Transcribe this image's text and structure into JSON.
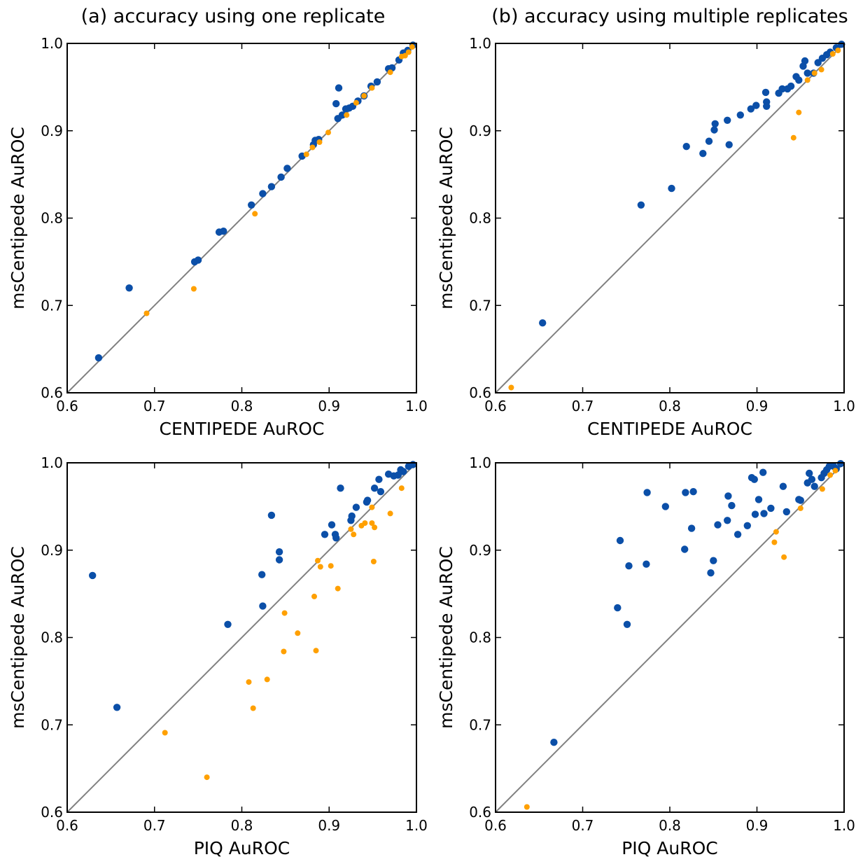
{
  "column_titles": [
    "(a) accuracy using one replicate",
    "(b) accuracy using multiple replicates"
  ],
  "colors": {
    "blue": "#0b4fa8",
    "orange": "#ffa000",
    "diagonal": "#808080"
  },
  "chart_data": [
    {
      "type": "scatter",
      "xlabel": "CENTIPEDE AuROC",
      "ylabel": "msCentipede AuROC",
      "xlim": [
        0.6,
        1.0
      ],
      "ylim": [
        0.6,
        1.0
      ],
      "xticks": [
        "0.6",
        "0.7",
        "0.8",
        "0.9",
        "1.0"
      ],
      "yticks": [
        "0.6",
        "0.7",
        "0.8",
        "0.9",
        "1.0"
      ],
      "diagonal": true,
      "series": [
        {
          "color": "blue",
          "points": [
            [
              0.636,
              0.64
            ],
            [
              0.671,
              0.72
            ],
            [
              0.746,
              0.75
            ],
            [
              0.75,
              0.752
            ],
            [
              0.774,
              0.784
            ],
            [
              0.779,
              0.785
            ],
            [
              0.811,
              0.815
            ],
            [
              0.824,
              0.828
            ],
            [
              0.834,
              0.836
            ],
            [
              0.845,
              0.847
            ],
            [
              0.852,
              0.857
            ],
            [
              0.869,
              0.871
            ],
            [
              0.882,
              0.884
            ],
            [
              0.884,
              0.889
            ],
            [
              0.888,
              0.89
            ],
            [
              0.908,
              0.931
            ],
            [
              0.911,
              0.949
            ],
            [
              0.91,
              0.914
            ],
            [
              0.915,
              0.918
            ],
            [
              0.919,
              0.925
            ],
            [
              0.923,
              0.926
            ],
            [
              0.927,
              0.928
            ],
            [
              0.933,
              0.934
            ],
            [
              0.94,
              0.94
            ],
            [
              0.948,
              0.951
            ],
            [
              0.955,
              0.956
            ],
            [
              0.968,
              0.971
            ],
            [
              0.972,
              0.972
            ],
            [
              0.98,
              0.981
            ],
            [
              0.985,
              0.989
            ],
            [
              0.99,
              0.992
            ],
            [
              0.996,
              0.998
            ]
          ]
        },
        {
          "color": "orange",
          "points": [
            [
              0.691,
              0.691
            ],
            [
              0.745,
              0.719
            ],
            [
              0.815,
              0.805
            ],
            [
              0.874,
              0.873
            ],
            [
              0.881,
              0.881
            ],
            [
              0.889,
              0.887
            ],
            [
              0.899,
              0.898
            ],
            [
              0.92,
              0.918
            ],
            [
              0.931,
              0.932
            ],
            [
              0.94,
              0.94
            ],
            [
              0.949,
              0.949
            ],
            [
              0.97,
              0.967
            ],
            [
              0.983,
              0.985
            ],
            [
              0.987,
              0.986
            ],
            [
              0.991,
              0.99
            ],
            [
              0.995,
              0.996
            ]
          ]
        }
      ]
    },
    {
      "type": "scatter",
      "xlabel": "CENTIPEDE AuROC",
      "ylabel": "msCentipede AuROC",
      "xlim": [
        0.6,
        1.0
      ],
      "ylim": [
        0.6,
        1.0
      ],
      "xticks": [
        "0.6",
        "0.7",
        "0.8",
        "0.9",
        "1.0"
      ],
      "yticks": [
        "0.6",
        "0.7",
        "0.8",
        "0.9",
        "1.0"
      ],
      "diagonal": true,
      "series": [
        {
          "color": "blue",
          "points": [
            [
              0.654,
              0.68
            ],
            [
              0.767,
              0.815
            ],
            [
              0.802,
              0.834
            ],
            [
              0.819,
              0.882
            ],
            [
              0.838,
              0.874
            ],
            [
              0.845,
              0.888
            ],
            [
              0.851,
              0.901
            ],
            [
              0.852,
              0.908
            ],
            [
              0.866,
              0.912
            ],
            [
              0.868,
              0.884
            ],
            [
              0.881,
              0.918
            ],
            [
              0.893,
              0.925
            ],
            [
              0.899,
              0.929
            ],
            [
              0.91,
              0.944
            ],
            [
              0.911,
              0.933
            ],
            [
              0.911,
              0.928
            ],
            [
              0.925,
              0.943
            ],
            [
              0.929,
              0.948
            ],
            [
              0.935,
              0.948
            ],
            [
              0.939,
              0.951
            ],
            [
              0.945,
              0.962
            ],
            [
              0.948,
              0.958
            ],
            [
              0.953,
              0.974
            ],
            [
              0.955,
              0.98
            ],
            [
              0.958,
              0.966
            ],
            [
              0.965,
              0.966
            ],
            [
              0.97,
              0.978
            ],
            [
              0.975,
              0.983
            ],
            [
              0.98,
              0.987
            ],
            [
              0.984,
              0.99
            ],
            [
              0.991,
              0.995
            ],
            [
              0.997,
              0.999
            ]
          ]
        },
        {
          "color": "orange",
          "points": [
            [
              0.618,
              0.606
            ],
            [
              0.942,
              0.892
            ],
            [
              0.948,
              0.921
            ],
            [
              0.958,
              0.958
            ],
            [
              0.966,
              0.966
            ],
            [
              0.974,
              0.97
            ],
            [
              0.987,
              0.988
            ],
            [
              0.993,
              0.992
            ]
          ]
        }
      ]
    },
    {
      "type": "scatter",
      "xlabel": "PIQ AuROC",
      "ylabel": "msCentipede AuROC",
      "xlim": [
        0.6,
        1.0
      ],
      "ylim": [
        0.6,
        1.0
      ],
      "xticks": [
        "0.6",
        "0.7",
        "0.8",
        "0.9",
        "1.0"
      ],
      "yticks": [
        "0.6",
        "0.7",
        "0.8",
        "0.9",
        "1.0"
      ],
      "diagonal": true,
      "series": [
        {
          "color": "blue",
          "points": [
            [
              0.629,
              0.871
            ],
            [
              0.657,
              0.72
            ],
            [
              0.784,
              0.815
            ],
            [
              0.823,
              0.872
            ],
            [
              0.824,
              0.836
            ],
            [
              0.834,
              0.94
            ],
            [
              0.843,
              0.898
            ],
            [
              0.843,
              0.889
            ],
            [
              0.895,
              0.918
            ],
            [
              0.903,
              0.929
            ],
            [
              0.907,
              0.918
            ],
            [
              0.908,
              0.914
            ],
            [
              0.913,
              0.971
            ],
            [
              0.925,
              0.934
            ],
            [
              0.926,
              0.939
            ],
            [
              0.931,
              0.949
            ],
            [
              0.943,
              0.955
            ],
            [
              0.944,
              0.957
            ],
            [
              0.952,
              0.971
            ],
            [
              0.957,
              0.981
            ],
            [
              0.959,
              0.967
            ],
            [
              0.968,
              0.987
            ],
            [
              0.974,
              0.985
            ],
            [
              0.979,
              0.986
            ],
            [
              0.982,
              0.992
            ],
            [
              0.985,
              0.99
            ],
            [
              0.991,
              0.996
            ],
            [
              0.996,
              0.998
            ]
          ]
        },
        {
          "color": "orange",
          "points": [
            [
              0.712,
              0.691
            ],
            [
              0.76,
              0.64
            ],
            [
              0.808,
              0.749
            ],
            [
              0.813,
              0.719
            ],
            [
              0.829,
              0.752
            ],
            [
              0.848,
              0.784
            ],
            [
              0.849,
              0.828
            ],
            [
              0.864,
              0.805
            ],
            [
              0.883,
              0.847
            ],
            [
              0.885,
              0.785
            ],
            [
              0.887,
              0.888
            ],
            [
              0.89,
              0.881
            ],
            [
              0.902,
              0.882
            ],
            [
              0.91,
              0.856
            ],
            [
              0.925,
              0.924
            ],
            [
              0.928,
              0.918
            ],
            [
              0.937,
              0.928
            ],
            [
              0.941,
              0.931
            ],
            [
              0.949,
              0.931
            ],
            [
              0.949,
              0.949
            ],
            [
              0.951,
              0.887
            ],
            [
              0.952,
              0.926
            ],
            [
              0.97,
              0.942
            ],
            [
              0.983,
              0.971
            ]
          ]
        }
      ]
    },
    {
      "type": "scatter",
      "xlabel": "PIQ AuROC",
      "ylabel": "msCentipede AuROC",
      "xlim": [
        0.6,
        1.0
      ],
      "ylim": [
        0.6,
        1.0
      ],
      "xticks": [
        "0.6",
        "0.7",
        "0.8",
        "0.9",
        "1.0"
      ],
      "yticks": [
        "0.6",
        "0.7",
        "0.8",
        "0.9",
        "1.0"
      ],
      "diagonal": true,
      "series": [
        {
          "color": "blue",
          "points": [
            [
              0.667,
              0.68
            ],
            [
              0.74,
              0.834
            ],
            [
              0.743,
              0.911
            ],
            [
              0.751,
              0.815
            ],
            [
              0.753,
              0.882
            ],
            [
              0.773,
              0.884
            ],
            [
              0.774,
              0.966
            ],
            [
              0.795,
              0.95
            ],
            [
              0.817,
              0.901
            ],
            [
              0.818,
              0.966
            ],
            [
              0.825,
              0.925
            ],
            [
              0.827,
              0.967
            ],
            [
              0.847,
              0.874
            ],
            [
              0.85,
              0.888
            ],
            [
              0.855,
              0.929
            ],
            [
              0.866,
              0.934
            ],
            [
              0.867,
              0.962
            ],
            [
              0.871,
              0.951
            ],
            [
              0.878,
              0.918
            ],
            [
              0.889,
              0.928
            ],
            [
              0.894,
              0.983
            ],
            [
              0.897,
              0.981
            ],
            [
              0.898,
              0.941
            ],
            [
              0.902,
              0.958
            ],
            [
              0.907,
              0.989
            ],
            [
              0.908,
              0.942
            ],
            [
              0.916,
              0.948
            ],
            [
              0.93,
              0.973
            ],
            [
              0.934,
              0.944
            ],
            [
              0.948,
              0.958
            ],
            [
              0.95,
              0.957
            ],
            [
              0.958,
              0.977
            ],
            [
              0.96,
              0.988
            ],
            [
              0.963,
              0.981
            ],
            [
              0.966,
              0.973
            ],
            [
              0.974,
              0.983
            ],
            [
              0.977,
              0.988
            ],
            [
              0.98,
              0.992
            ],
            [
              0.983,
              0.996
            ],
            [
              0.988,
              0.996
            ],
            [
              0.991,
              0.993
            ],
            [
              0.996,
              0.999
            ]
          ]
        },
        {
          "color": "orange",
          "points": [
            [
              0.636,
              0.606
            ],
            [
              0.92,
              0.909
            ],
            [
              0.922,
              0.921
            ],
            [
              0.931,
              0.892
            ],
            [
              0.95,
              0.948
            ],
            [
              0.975,
              0.97
            ],
            [
              0.984,
              0.986
            ],
            [
              0.99,
              0.991
            ]
          ]
        }
      ]
    }
  ]
}
